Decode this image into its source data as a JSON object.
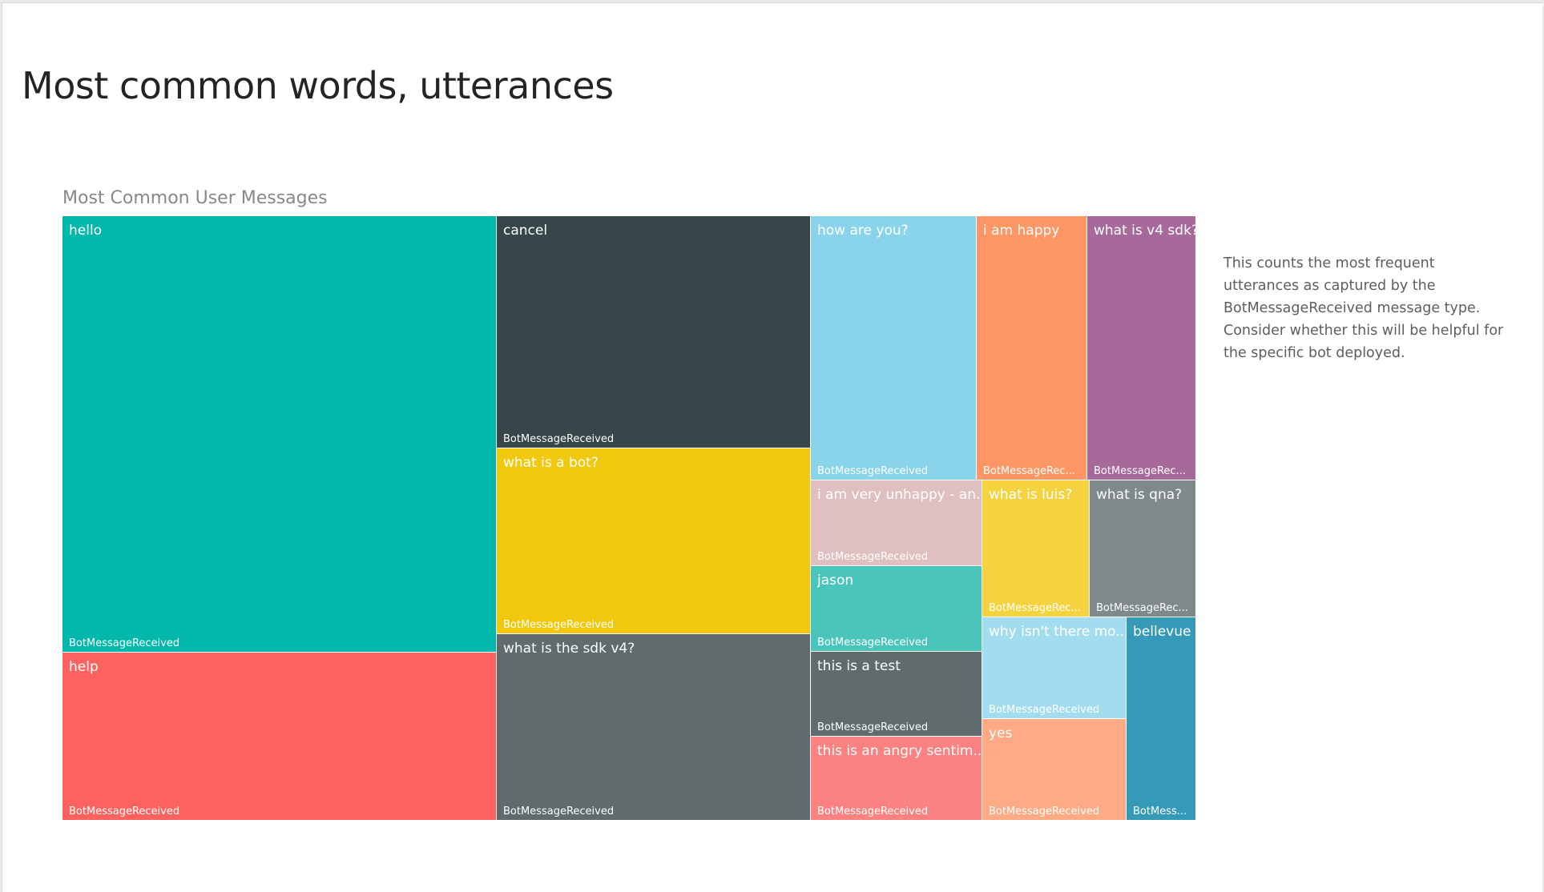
{
  "page": {
    "title": "Most common words, utterances",
    "description": "This counts the most frequent utterances as captured by the BotMessageReceived message type. Consider whether this will be helpful for the specific bot deployed."
  },
  "chart_data": {
    "type": "treemap",
    "title": "Most Common User Messages",
    "group": "BotMessageReceived",
    "items": [
      {
        "label": "hello",
        "group_label": "BotMessageReceived",
        "color": "#01b8aa"
      },
      {
        "label": "help",
        "group_label": "BotMessageReceived",
        "color": "#fd625e"
      },
      {
        "label": "cancel",
        "group_label": "BotMessageReceived",
        "color": "#374649"
      },
      {
        "label": "what is a bot?",
        "group_label": "BotMessageReceived",
        "color": "#f2c80f"
      },
      {
        "label": "what is the sdk v4?",
        "group_label": "BotMessageReceived",
        "color": "#5f6b6d"
      },
      {
        "label": "how are you?",
        "group_label": "BotMessageReceived",
        "color": "#8ad4eb"
      },
      {
        "label": "i am happy",
        "group_label": "BotMessageRec...",
        "color": "#fe9666"
      },
      {
        "label": "what is v4 sdk?",
        "group_label": "BotMessageRec...",
        "color": "#a66999"
      },
      {
        "label": "i am very unhappy - an...",
        "group_label": "BotMessageReceived",
        "color": "#dfbfbf"
      },
      {
        "label": "what is luis?",
        "group_label": "BotMessageRec...",
        "color": "#f5d33f"
      },
      {
        "label": "what is qna?",
        "group_label": "BotMessageRec...",
        "color": "#7f898a"
      },
      {
        "label": "jason",
        "group_label": "BotMessageReceived",
        "color": "#4ac5bb"
      },
      {
        "label": "this is a test",
        "group_label": "BotMessageReceived",
        "color": "#5f6b6d"
      },
      {
        "label": "this is an angry sentim...",
        "group_label": "BotMessageReceived",
        "color": "#fb8281"
      },
      {
        "label": "why isn't there mo...",
        "group_label": "BotMessageReceived",
        "color": "#a1ddef"
      },
      {
        "label": "yes",
        "group_label": "BotMessageReceived",
        "color": "#feab85"
      },
      {
        "label": "bellevue",
        "group_label": "BotMess...",
        "color": "#3599b8"
      }
    ]
  }
}
